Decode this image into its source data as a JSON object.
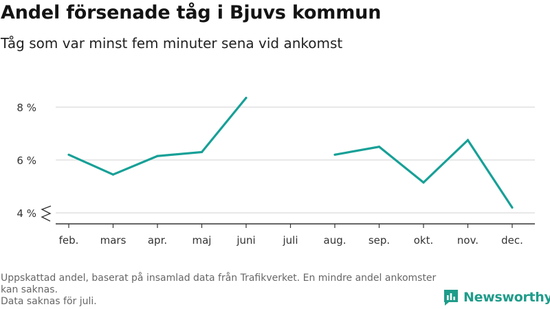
{
  "title": "Andel försenade tåg i Bjuvs kommun",
  "subtitle": "Tåg som var minst fem minuter sena vid ankomst",
  "footnote": {
    "line1": "Uppskattad andel, baserat på insamlad data från Trafikverket. En mindre andel ankomster kan saknas.",
    "line2": "Data saknas för juli."
  },
  "brand": {
    "name": "Newsworthy",
    "icon": "newsworthy-logo-icon",
    "color": "#1f9c8a"
  },
  "chart_data": {
    "type": "line",
    "categories": [
      "feb.",
      "mars",
      "apr.",
      "maj",
      "juni",
      "juli",
      "aug.",
      "sep.",
      "okt.",
      "nov.",
      "dec."
    ],
    "series": [
      {
        "values": [
          6.2,
          5.45,
          6.15,
          6.3,
          8.35,
          null,
          6.2,
          6.5,
          5.15,
          6.75,
          4.2
        ],
        "color": "#17a097"
      }
    ],
    "ytick_labels": [
      "4 %",
      "6 %",
      "8 %"
    ],
    "yticks": [
      4,
      6,
      8
    ],
    "ylim": [
      4,
      9
    ],
    "y_axis_break": true,
    "grid": "horizontal",
    "xlabel": "",
    "ylabel": ""
  }
}
